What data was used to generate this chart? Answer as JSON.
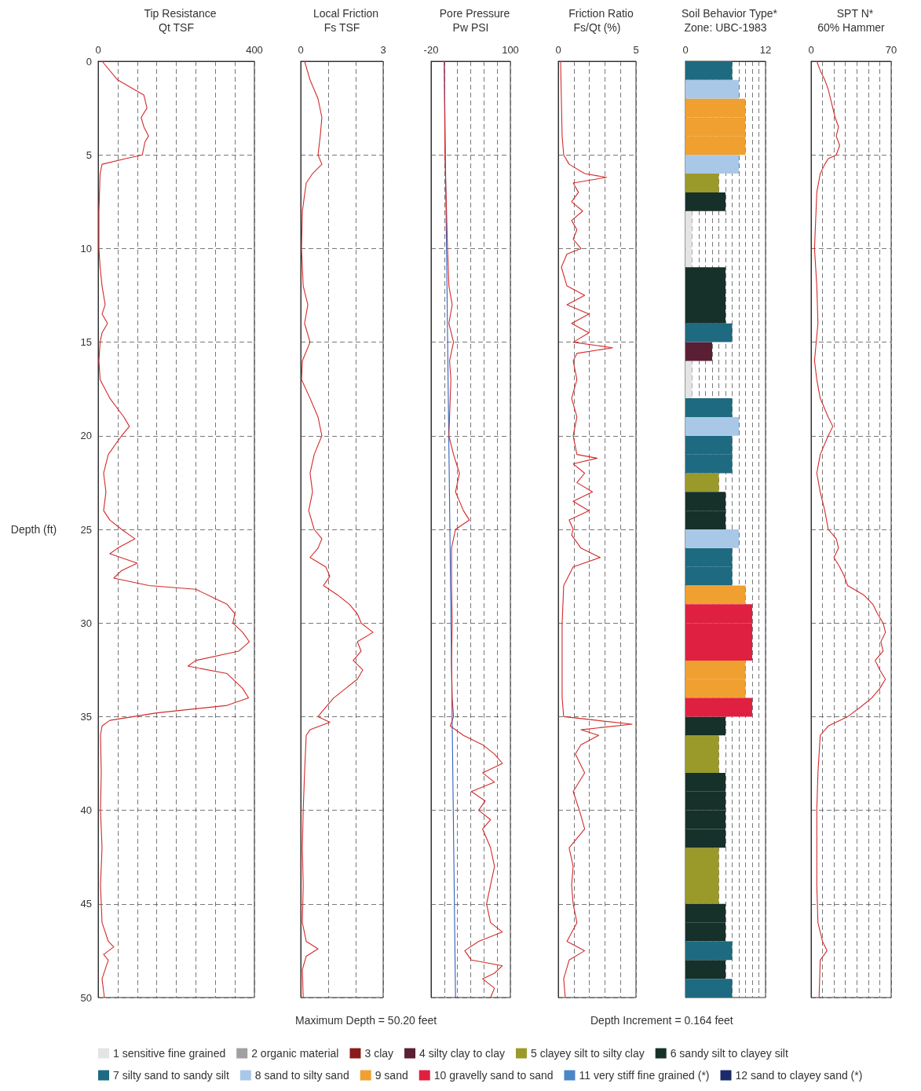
{
  "chart_data": [
    {
      "type": "line",
      "title": "Tip Resistance",
      "xlabel": "Qt TSF",
      "ylabel": "Depth (ft)",
      "marker": "none",
      "grid": true,
      "xlim": [
        0,
        400
      ],
      "xticks": [
        0,
        {
          "value": 50,
          "label": null
        },
        {
          "value": 100,
          "label": null
        },
        {
          "value": 150,
          "label": null
        },
        {
          "value": 200,
          "label": null
        },
        {
          "value": 250,
          "label": null
        },
        {
          "value": 300,
          "label": null
        },
        {
          "value": 350,
          "label": null
        },
        400
      ],
      "ylim": [
        50,
        0
      ],
      "yticks": [
        0,
        5,
        10,
        15,
        20,
        25,
        30,
        35,
        40,
        45,
        50
      ],
      "series": [
        {
          "color": "#d42a2a",
          "x": [
            10,
            50,
            117,
            125,
            110,
            117,
            129,
            120,
            113,
            70,
            10,
            5,
            2,
            2,
            5,
            10,
            18,
            10,
            24,
            10,
            5,
            2,
            5,
            30,
            66,
            80,
            60,
            26,
            14,
            20,
            14,
            30,
            60,
            94,
            50,
            30,
            100,
            60,
            40,
            130,
            250,
            290,
            330,
            350,
            345,
            370,
            387,
            360,
            250,
            230,
            330,
            345,
            370,
            385,
            330,
            150,
            30,
            10,
            6,
            8,
            6,
            10,
            6,
            10,
            26,
            40,
            14,
            26,
            10,
            16
          ],
          "values": [
            0,
            1,
            1.8,
            2.5,
            3,
            3.5,
            4,
            4.3,
            5,
            5.2,
            5.5,
            6,
            8,
            10,
            11,
            12,
            13,
            13.5,
            14,
            14.5,
            15,
            16,
            17,
            18,
            19,
            19.5,
            20,
            21,
            22,
            23,
            24,
            24.5,
            25,
            25.5,
            26,
            26.3,
            26.8,
            27.2,
            27.6,
            28,
            28.2,
            28.6,
            29,
            29.5,
            30,
            30.5,
            31,
            31.5,
            32,
            32.3,
            32.7,
            33,
            33.5,
            34,
            34.4,
            34.8,
            35.2,
            35.5,
            36,
            38,
            40,
            42,
            44,
            46,
            47,
            47.3,
            47.7,
            48,
            49,
            50
          ]
        }
      ]
    },
    {
      "type": "line",
      "title": "Local Friction",
      "xlabel": "Fs TSF",
      "marker": "none",
      "grid": true,
      "tick_labels": "x",
      "xlim": [
        0,
        3
      ],
      "xticks": [
        0,
        {
          "value": 1,
          "label": null
        },
        {
          "value": 2,
          "label": null
        },
        3
      ],
      "ylim": [
        50,
        0
      ],
      "yticks": [
        0,
        5,
        10,
        15,
        20,
        25,
        30,
        35,
        40,
        45,
        50
      ],
      "series": [
        {
          "color": "#d42a2a",
          "x": [
            0.14,
            0.34,
            0.63,
            0.77,
            0.71,
            0.63,
            0.77,
            0.43,
            0.2,
            0.06,
            0.03,
            0.09,
            0.26,
            0.14,
            0.34,
            0.06,
            0.03,
            0.34,
            0.63,
            0.77,
            0.49,
            0.34,
            0.43,
            0.29,
            0.49,
            0.77,
            0.63,
            0.34,
            0.91,
            1.06,
            0.83,
            1.34,
            1.77,
            2.06,
            2.2,
            2.63,
            2.06,
            2.2,
            1.91,
            2.26,
            2.06,
            1.63,
            1.2,
            0.91,
            0.63,
            1.06,
            0.34,
            0.2,
            0.14,
            0.09,
            0.06,
            0.09,
            0.06,
            0.2,
            0.63,
            0.2,
            0.06,
            0.09
          ],
          "values": [
            0,
            1,
            2,
            3,
            4,
            5,
            5.5,
            6,
            6.5,
            8,
            10,
            12,
            13,
            14,
            15,
            16,
            17,
            18,
            19,
            20,
            21,
            22,
            23,
            24,
            25,
            25.5,
            26,
            26.5,
            27,
            27.5,
            28,
            28.5,
            29,
            29.5,
            30,
            30.5,
            31,
            31.5,
            32,
            32.5,
            33,
            33.5,
            34,
            34.5,
            35,
            35.3,
            35.7,
            36,
            38,
            40,
            42,
            44,
            46,
            47,
            47.4,
            47.8,
            48.5,
            50
          ]
        }
      ]
    },
    {
      "type": "line",
      "title": "Pore Pressure",
      "xlabel": "Pw PSI",
      "marker": "none",
      "grid": true,
      "tick_labels": "x",
      "xlim": [
        -20,
        100
      ],
      "xticks": [
        -20,
        {
          "value": 0,
          "label": null
        },
        {
          "value": 20,
          "label": null
        },
        {
          "value": 40,
          "label": null
        },
        {
          "value": 60,
          "label": null
        },
        {
          "value": 80,
          "label": null
        },
        100
      ],
      "ylim": [
        50,
        0
      ],
      "yticks": [
        0,
        5,
        10,
        15,
        20,
        25,
        30,
        35,
        40,
        45,
        50
      ],
      "series": [
        {
          "color": "#3060c0",
          "x": [
            0,
            17
          ],
          "values": [
            0,
            50
          ]
        },
        {
          "color": "#d42a2a",
          "x": [
            0,
            1,
            5,
            7,
            12,
            7,
            14,
            8,
            10,
            9,
            7,
            14,
            23,
            17,
            29,
            38,
            17,
            11,
            11,
            12,
            11,
            12,
            14,
            9,
            29,
            58,
            76,
            88,
            58,
            76,
            41,
            62,
            52,
            70,
            58,
            70,
            76,
            70,
            64,
            70,
            88,
            52,
            31,
            41,
            88,
            76,
            58,
            76,
            70
          ],
          "values": [
            0,
            5,
            10,
            12,
            13,
            14,
            15,
            16,
            17,
            18,
            20,
            21,
            22,
            23,
            24,
            24.5,
            25,
            26,
            28,
            30,
            32,
            34,
            35,
            35.5,
            36,
            36.5,
            37,
            37.5,
            38,
            38.5,
            39,
            39.5,
            40,
            40.5,
            41,
            42,
            43,
            44,
            45,
            46,
            46.5,
            47,
            47.5,
            48,
            48.3,
            48.7,
            49,
            49.5,
            50
          ]
        }
      ]
    },
    {
      "type": "line",
      "title": "Friction Ratio",
      "xlabel": "Fs/Qt (%)",
      "marker": "none",
      "grid": true,
      "tick_labels": "x",
      "xlim": [
        0,
        5
      ],
      "xticks": [
        0,
        {
          "value": 1,
          "label": null
        },
        {
          "value": 2,
          "label": null
        },
        {
          "value": 3,
          "label": null
        },
        {
          "value": 4,
          "label": null
        },
        5
      ],
      "ylim": [
        50,
        0
      ],
      "yticks": [
        0,
        5,
        10,
        15,
        20,
        25,
        30,
        35,
        40,
        45,
        50
      ],
      "series": [
        {
          "color": "#d42a2a",
          "x": [
            0.15,
            0.25,
            0.35,
            0.7,
            1.7,
            3.1,
            0.96,
            1.3,
            0.86,
            1.57,
            0.86,
            1.2,
            0.96,
            1.46,
            0.56,
            0.2,
            0.56,
            1.7,
            0.56,
            1.97,
            0.86,
            1.97,
            0.96,
            3.5,
            1.2,
            0.96,
            1.2,
            0.86,
            1.2,
            0.96,
            1.2,
            2.5,
            0.96,
            1.7,
            1.2,
            2.2,
            0.96,
            1.97,
            0.7,
            0.96,
            0.86,
            1.46,
            2.7,
            0.96,
            0.35,
            0.25,
            0.25,
            0.25,
            0.35,
            2.5,
            4.75,
            1.46,
            2.6,
            1.46,
            1.1,
            1.7,
            0.96,
            1.36,
            1.7,
            0.7,
            0.96,
            0.86,
            0.96,
            1.2,
            0.56,
            1.7,
            0.7,
            0.35,
            0.45
          ],
          "values": [
            0,
            4,
            5,
            5.5,
            6,
            6.2,
            6.5,
            7,
            7.5,
            8,
            8.5,
            9,
            9.5,
            10,
            10.3,
            11,
            12,
            12.5,
            13,
            13.5,
            14,
            14.5,
            15,
            15.3,
            15.6,
            16,
            17,
            18,
            19,
            20,
            21,
            21.2,
            21.5,
            22,
            22.5,
            23,
            23.5,
            24,
            24.5,
            25,
            25.3,
            26,
            26.5,
            27,
            28,
            30,
            32,
            34,
            35,
            35.2,
            35.4,
            35.7,
            36,
            36.5,
            37,
            38,
            39,
            40,
            41,
            42,
            43,
            44,
            45,
            46,
            47,
            47.5,
            48,
            49,
            50
          ]
        }
      ]
    },
    {
      "type": "bar",
      "orientation": "horizontal",
      "stacked": true,
      "title": "Soil Behavior Type*",
      "xlabel": "Zone: UBC-1983",
      "grid": "x",
      "tick_labels": "x",
      "legend": "bottom",
      "annotations": [
        "Maximum Depth = 50.20 feet",
        "Depth Increment = 0.164 feet"
      ],
      "xlim": [
        0,
        12
      ],
      "xticks": [
        0,
        {
          "value": 1,
          "label": null
        },
        {
          "value": 2,
          "label": null
        },
        {
          "value": 3,
          "label": null
        },
        {
          "value": 4,
          "label": null
        },
        {
          "value": 5,
          "label": null
        },
        {
          "value": 6,
          "label": null
        },
        {
          "value": 7,
          "label": null
        },
        {
          "value": 8,
          "label": null
        },
        {
          "value": 9,
          "label": null
        },
        {
          "value": 10,
          "label": null
        },
        {
          "value": 11,
          "label": null
        },
        12
      ],
      "categories": [
        null,
        null,
        null,
        null,
        null,
        null,
        null,
        null,
        null,
        null,
        null,
        null,
        null,
        null,
        null,
        null,
        null,
        null,
        null,
        null,
        null,
        null,
        null,
        null,
        null,
        null,
        null,
        null,
        null,
        null,
        null,
        null,
        null,
        null,
        null,
        null,
        null,
        null,
        null,
        null,
        null,
        null,
        null,
        null,
        null,
        null,
        null,
        null,
        null,
        null
      ],
      "series": [
        {
          "name": "1 sensitive fine grained",
          "color": "#e4e4e4",
          "values": [
            null,
            null,
            null,
            null,
            null,
            null,
            null,
            null,
            1,
            1,
            1,
            null,
            null,
            null,
            null,
            null,
            1,
            1,
            null,
            null,
            null,
            null,
            null,
            null,
            null,
            null,
            null,
            null,
            null,
            null,
            null,
            null,
            null,
            null,
            null,
            null,
            null,
            null,
            null,
            null,
            null,
            null,
            null,
            null,
            null,
            null,
            null,
            null,
            null,
            null
          ]
        },
        {
          "name": "2 organic material",
          "color": "#a0a0a0",
          "values": [
            null,
            null,
            null,
            null,
            null,
            null,
            null,
            null,
            null,
            null,
            null,
            null,
            null,
            null,
            null,
            null,
            null,
            null,
            null,
            null,
            null,
            null,
            null,
            null,
            null,
            null,
            null,
            null,
            null,
            null,
            null,
            null,
            null,
            null,
            null,
            null,
            null,
            null,
            null,
            null,
            null,
            null,
            null,
            null,
            null,
            null,
            null,
            null,
            null,
            null
          ]
        },
        {
          "name": "3 clay",
          "color": "#8b1a1a",
          "values": [
            null,
            null,
            null,
            null,
            null,
            null,
            null,
            null,
            null,
            null,
            null,
            null,
            null,
            null,
            null,
            null,
            null,
            null,
            null,
            null,
            null,
            null,
            null,
            null,
            null,
            null,
            null,
            null,
            null,
            null,
            null,
            null,
            null,
            null,
            null,
            null,
            null,
            null,
            null,
            null,
            null,
            null,
            null,
            null,
            null,
            null,
            null,
            null,
            null,
            null
          ]
        },
        {
          "name": "4 silty clay to clay",
          "color": "#5a1f35",
          "values": [
            null,
            null,
            null,
            null,
            null,
            null,
            null,
            null,
            null,
            null,
            null,
            null,
            null,
            null,
            null,
            4,
            null,
            null,
            null,
            null,
            null,
            null,
            null,
            null,
            null,
            null,
            null,
            null,
            null,
            null,
            null,
            null,
            null,
            null,
            null,
            null,
            null,
            null,
            null,
            null,
            null,
            null,
            null,
            null,
            null,
            null,
            null,
            null,
            null,
            null
          ]
        },
        {
          "name": "5 clayey silt to silty clay",
          "color": "#9a9a2a",
          "values": [
            null,
            null,
            null,
            null,
            null,
            null,
            5,
            null,
            null,
            null,
            null,
            null,
            null,
            null,
            null,
            null,
            null,
            null,
            null,
            null,
            null,
            null,
            5,
            null,
            null,
            null,
            null,
            null,
            null,
            null,
            null,
            null,
            null,
            null,
            null,
            null,
            5,
            5,
            null,
            null,
            null,
            null,
            5,
            5,
            5,
            null,
            null,
            null,
            null,
            null
          ]
        },
        {
          "name": "6 sandy silt to clayey silt",
          "color": "#16302a",
          "values": [
            null,
            null,
            null,
            null,
            null,
            null,
            null,
            6,
            null,
            null,
            null,
            6,
            6,
            6,
            null,
            null,
            null,
            null,
            null,
            null,
            null,
            null,
            null,
            6,
            6,
            null,
            null,
            null,
            null,
            null,
            null,
            null,
            null,
            null,
            null,
            6,
            null,
            null,
            6,
            6,
            6,
            6,
            null,
            null,
            null,
            6,
            6,
            null,
            6,
            null
          ]
        },
        {
          "name": "7 silty sand to sandy silt",
          "color": "#1e6a80",
          "values": [
            7,
            null,
            null,
            null,
            null,
            null,
            null,
            null,
            null,
            null,
            null,
            null,
            null,
            null,
            7,
            null,
            null,
            null,
            7,
            null,
            7,
            7,
            null,
            null,
            null,
            null,
            7,
            7,
            null,
            null,
            null,
            null,
            null,
            null,
            null,
            null,
            null,
            null,
            null,
            null,
            null,
            null,
            null,
            null,
            null,
            null,
            null,
            7,
            null,
            7
          ]
        },
        {
          "name": "8 sand to silty sand",
          "color": "#a9c8e8",
          "values": [
            null,
            8,
            null,
            null,
            null,
            8,
            null,
            null,
            null,
            null,
            null,
            null,
            null,
            null,
            null,
            null,
            null,
            null,
            null,
            8,
            null,
            null,
            null,
            null,
            null,
            8,
            null,
            null,
            null,
            null,
            null,
            null,
            null,
            null,
            null,
            null,
            null,
            null,
            null,
            null,
            null,
            null,
            null,
            null,
            null,
            null,
            null,
            null,
            null,
            null
          ]
        },
        {
          "name": "9 sand",
          "color": "#f0a030",
          "values": [
            null,
            null,
            9,
            9,
            9,
            null,
            null,
            null,
            null,
            null,
            null,
            null,
            null,
            null,
            null,
            null,
            null,
            null,
            null,
            null,
            null,
            null,
            null,
            null,
            null,
            null,
            null,
            null,
            9,
            null,
            null,
            null,
            9,
            9,
            null,
            null,
            null,
            null,
            null,
            null,
            null,
            null,
            null,
            null,
            null,
            null,
            null,
            null,
            null,
            null
          ]
        },
        {
          "name": "10 gravelly sand to sand",
          "color": "#e02040",
          "values": [
            null,
            null,
            null,
            null,
            null,
            null,
            null,
            null,
            null,
            null,
            null,
            null,
            null,
            null,
            null,
            null,
            null,
            null,
            null,
            null,
            null,
            null,
            null,
            null,
            null,
            null,
            null,
            null,
            null,
            10,
            10,
            10,
            null,
            null,
            10,
            null,
            null,
            null,
            null,
            null,
            null,
            null,
            null,
            null,
            null,
            null,
            null,
            null,
            null,
            null
          ]
        },
        {
          "name": "11 very stiff fine grained (*)",
          "color": "#4a86c8",
          "values": [
            null,
            null,
            null,
            null,
            null,
            null,
            null,
            null,
            null,
            null,
            null,
            null,
            null,
            null,
            null,
            null,
            null,
            null,
            null,
            null,
            null,
            null,
            null,
            null,
            null,
            null,
            null,
            null,
            null,
            null,
            null,
            null,
            null,
            null,
            null,
            null,
            null,
            null,
            null,
            null,
            null,
            null,
            null,
            null,
            null,
            null,
            null,
            null,
            null,
            null
          ]
        },
        {
          "name": "12 sand to clayey sand (*)",
          "color": "#1a2a6a",
          "values": [
            null,
            null,
            null,
            null,
            null,
            null,
            null,
            null,
            null,
            null,
            null,
            null,
            null,
            null,
            null,
            null,
            null,
            null,
            null,
            null,
            null,
            null,
            null,
            null,
            null,
            null,
            null,
            null,
            null,
            null,
            null,
            null,
            null,
            null,
            null,
            null,
            null,
            null,
            null,
            null,
            null,
            null,
            null,
            null,
            null,
            null,
            null,
            null,
            null,
            null
          ]
        }
      ]
    },
    {
      "type": "line",
      "title": "SPT N*",
      "xlabel": "60% Hammer",
      "marker": "none",
      "grid": true,
      "tick_labels": "x",
      "xlim": [
        0,
        70
      ],
      "xticks": [
        0,
        {
          "value": 10,
          "label": null
        },
        {
          "value": 20,
          "label": null
        },
        {
          "value": 30,
          "label": null
        },
        {
          "value": 40,
          "label": null
        },
        {
          "value": 50,
          "label": null
        },
        {
          "value": 60,
          "label": null
        },
        70
      ],
      "ylim": [
        50,
        0
      ],
      "yticks": [
        0,
        5,
        10,
        15,
        20,
        25,
        30,
        35,
        40,
        45,
        50
      ],
      "series": [
        {
          "color": "#d42a2a",
          "x": [
            5,
            8,
            12,
            15,
            17,
            21,
            24,
            22,
            25,
            22,
            15,
            12,
            8,
            5,
            3,
            5,
            6,
            3,
            5,
            8,
            15,
            19,
            15,
            8,
            5,
            8,
            12,
            15,
            22,
            24,
            20,
            25,
            29,
            32,
            46,
            54,
            58,
            63,
            65,
            61,
            63,
            56,
            60,
            65,
            60,
            53,
            43,
            32,
            15,
            8,
            6,
            5,
            5,
            6,
            10,
            14,
            8,
            7
          ],
          "values": [
            0,
            0.5,
            1,
            1.5,
            2,
            3,
            3.5,
            4,
            4.5,
            5,
            5.2,
            5.5,
            6,
            7,
            10,
            12,
            14,
            16,
            17,
            18,
            19,
            19.5,
            20,
            21,
            22,
            23,
            24,
            25,
            25.5,
            26,
            26.5,
            27,
            27.5,
            28,
            28.5,
            29,
            29.5,
            30,
            30.5,
            31,
            31.5,
            32,
            32.5,
            33,
            33.5,
            34,
            34.5,
            35,
            35.5,
            36,
            38,
            40,
            44,
            46,
            47,
            47.5,
            48,
            50
          ]
        }
      ]
    }
  ]
}
